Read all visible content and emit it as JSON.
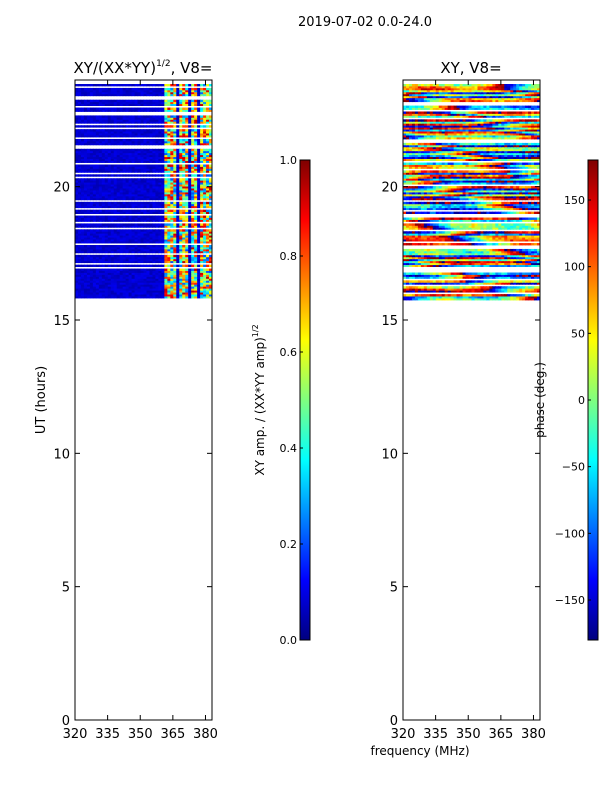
{
  "figure": {
    "suptitle": "2019-07-02 0.0-24.0",
    "shared_xlabel": "frequency (MHz)"
  },
  "chart_data": [
    {
      "type": "heatmap",
      "title": "XY/(XX*YY)",
      "title_sup": "1/2",
      "title_suffix": ", V8=",
      "xlabel": "",
      "ylabel": "UT (hours)",
      "xlim": [
        320,
        383
      ],
      "ylim": [
        0,
        24
      ],
      "x_ticks": [
        320,
        335,
        350,
        365,
        380
      ],
      "y_ticks": [
        0,
        5,
        10,
        15,
        20
      ],
      "data_extent_hours": [
        15.75,
        23.85
      ],
      "colorbar": {
        "label": "XY amp. / (XX*YY amp)",
        "label_sup": "1/2",
        "range": [
          0.0,
          1.0
        ],
        "ticks": [
          "0.0",
          "0.2",
          "0.4",
          "0.6",
          "0.8",
          "1.0"
        ]
      }
    },
    {
      "type": "heatmap",
      "title": "XY, V8=",
      "xlabel": "frequency (MHz)",
      "ylabel": "",
      "xlim": [
        320,
        383
      ],
      "ylim": [
        0,
        24
      ],
      "x_ticks": [
        320,
        335,
        350,
        365,
        380
      ],
      "y_ticks": [
        0,
        5,
        10,
        15,
        20
      ],
      "data_extent_hours": [
        15.75,
        23.85
      ],
      "colorbar": {
        "label": "phase (deg.)",
        "range": [
          -180,
          180
        ],
        "ticks": [
          "−150",
          "−100",
          "−50",
          "0",
          "50",
          "100",
          "150"
        ]
      }
    }
  ]
}
